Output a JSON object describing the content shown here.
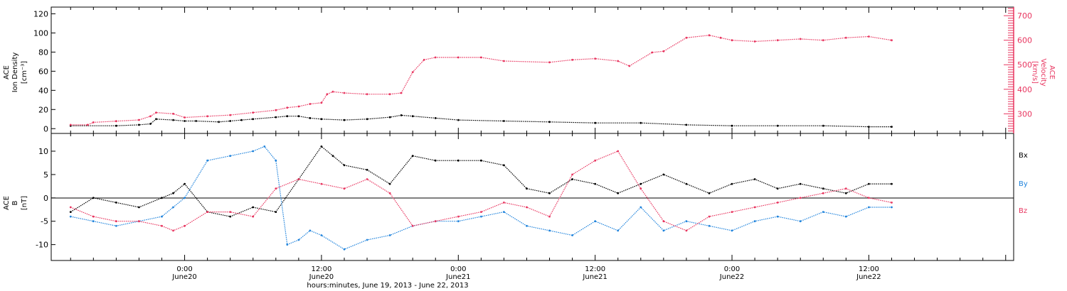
{
  "colors": {
    "black": "#000000",
    "pink": "#e8355f",
    "blue": "#1f83dc",
    "axis": "#000000"
  },
  "chart_data": [
    {
      "type": "scatter",
      "panel": "density-velocity",
      "left_axis": {
        "label_lines": [
          "ACE",
          "Ion Density",
          "[cm⁻³]"
        ],
        "ylim": [
          -5,
          127
        ],
        "ticks": [
          0,
          20,
          40,
          60,
          80,
          100,
          120
        ],
        "tick_labels": [
          "0",
          "20",
          "40",
          "60",
          "80",
          "100",
          "120"
        ]
      },
      "right_axis": {
        "label_lines": [
          "ACE",
          "Velocity",
          "[km/s]"
        ],
        "ylim": [
          220,
          735
        ],
        "ticks": [
          300,
          400,
          500,
          600,
          700
        ],
        "tick_labels": [
          "300",
          "400",
          "500",
          "600",
          "700"
        ]
      },
      "series": [
        {
          "axis": "left",
          "color": "black",
          "x": [
            -10,
            -6,
            -4,
            -3,
            -2.5,
            -1,
            0,
            1,
            3,
            4,
            5,
            6,
            8,
            9,
            10,
            11,
            12,
            14,
            16,
            18,
            19,
            20,
            22,
            24,
            28,
            32,
            36,
            40,
            44,
            48,
            52,
            56,
            60,
            62
          ],
          "y": [
            3,
            3,
            4,
            5,
            10,
            9,
            8,
            8,
            7,
            8,
            9,
            10,
            12,
            13,
            13,
            11,
            10,
            9,
            10,
            12,
            14,
            13,
            11,
            9,
            8,
            7,
            6,
            6,
            4,
            3,
            3,
            3,
            2,
            2
          ]
        },
        {
          "axis": "right",
          "color": "pink",
          "x": [
            -10,
            -8.5,
            -8,
            -6,
            -4,
            -3,
            -2.5,
            -1,
            0,
            2,
            4,
            6,
            8,
            9,
            10,
            11,
            12,
            12.5,
            13,
            14,
            16,
            18,
            19,
            20,
            21,
            22,
            24,
            26,
            28,
            32,
            34,
            36,
            38,
            39,
            41,
            42,
            44,
            46,
            47,
            48,
            50,
            52,
            54,
            56,
            58,
            60,
            62
          ],
          "y": [
            255,
            255,
            265,
            270,
            275,
            290,
            305,
            300,
            285,
            290,
            295,
            305,
            315,
            325,
            330,
            340,
            345,
            380,
            390,
            385,
            380,
            380,
            385,
            470,
            520,
            530,
            530,
            530,
            515,
            510,
            520,
            525,
            515,
            495,
            550,
            555,
            610,
            620,
            610,
            600,
            595,
            600,
            605,
            600,
            610,
            615,
            600
          ]
        }
      ],
      "xlim": [
        -11.7,
        72.7
      ]
    },
    {
      "type": "scatter",
      "panel": "magnetic-field",
      "left_axis": {
        "label_lines": [
          "ACE",
          "B",
          "[nT]"
        ],
        "ylim": [
          -13.4,
          13.8
        ],
        "ticks": [
          -10,
          -5,
          0,
          5,
          10
        ],
        "tick_labels": [
          "-10",
          "-5",
          "0",
          "5",
          "10"
        ]
      },
      "legend": [
        "Bx",
        "By",
        "Bz"
      ],
      "series": [
        {
          "name": "Bx",
          "color": "black",
          "x": [
            -10,
            -8,
            -6,
            -4,
            -2,
            -1,
            0,
            2,
            4,
            6,
            8,
            10,
            12,
            13,
            14,
            16,
            18,
            20,
            22,
            24,
            26,
            28,
            30,
            32,
            34,
            36,
            38,
            40,
            42,
            44,
            46,
            48,
            50,
            52,
            54,
            56,
            58,
            60,
            62
          ],
          "y": [
            -3,
            0,
            -1,
            -2,
            0,
            1,
            3,
            -3,
            -4,
            -2,
            -3,
            4,
            11,
            9,
            7,
            6,
            3,
            9,
            8,
            8,
            8,
            7,
            2,
            1,
            4,
            3,
            1,
            3,
            5,
            3,
            1,
            3,
            4,
            2,
            3,
            2,
            1,
            3,
            3
          ]
        },
        {
          "name": "By",
          "color": "blue",
          "x": [
            -10,
            -8,
            -6,
            -4,
            -2,
            -1,
            0,
            2,
            4,
            6,
            7,
            8,
            9,
            10,
            11,
            12,
            14,
            16,
            18,
            20,
            22,
            24,
            26,
            28,
            30,
            32,
            34,
            36,
            38,
            40,
            42,
            44,
            46,
            48,
            50,
            52,
            54,
            56,
            58,
            60,
            62
          ],
          "y": [
            -4,
            -5,
            -6,
            -5,
            -4,
            -2,
            0,
            8,
            9,
            10,
            11,
            8,
            -10,
            -9,
            -7,
            -8,
            -11,
            -9,
            -8,
            -6,
            -5,
            -5,
            -4,
            -3,
            -6,
            -7,
            -8,
            -5,
            -7,
            -2,
            -7,
            -5,
            -6,
            -7,
            -5,
            -4,
            -5,
            -3,
            -4,
            -2,
            -2
          ]
        },
        {
          "name": "Bz",
          "color": "pink",
          "x": [
            -10,
            -8,
            -6,
            -4,
            -2,
            -1,
            0,
            2,
            4,
            6,
            8,
            10,
            12,
            14,
            16,
            18,
            20,
            22,
            24,
            26,
            28,
            30,
            32,
            34,
            36,
            38,
            40,
            42,
            44,
            46,
            48,
            50,
            52,
            54,
            56,
            58,
            60,
            62
          ],
          "y": [
            -2,
            -4,
            -5,
            -5,
            -6,
            -7,
            -6,
            -3,
            -3,
            -4,
            2,
            4,
            3,
            2,
            4,
            1,
            -6,
            -5,
            -4,
            -3,
            -1,
            -2,
            -4,
            5,
            8,
            10,
            2,
            -5,
            -7,
            -4,
            -3,
            -2,
            -1,
            0,
            1,
            2,
            0,
            -1
          ]
        }
      ],
      "xlim": [
        -11.7,
        72.7
      ]
    }
  ],
  "x_axis": {
    "ticks": [
      0,
      12,
      24,
      36,
      48,
      60
    ],
    "tick_labels_top": [
      "0:00",
      "12:00",
      "0:00",
      "12:00",
      "0:00",
      "12:00"
    ],
    "tick_labels_bottom": [
      "June20",
      "June20",
      "June21",
      "June21",
      "June22",
      "June22"
    ],
    "title": "hours:minutes, June 19, 2013 - June 22, 2013"
  }
}
